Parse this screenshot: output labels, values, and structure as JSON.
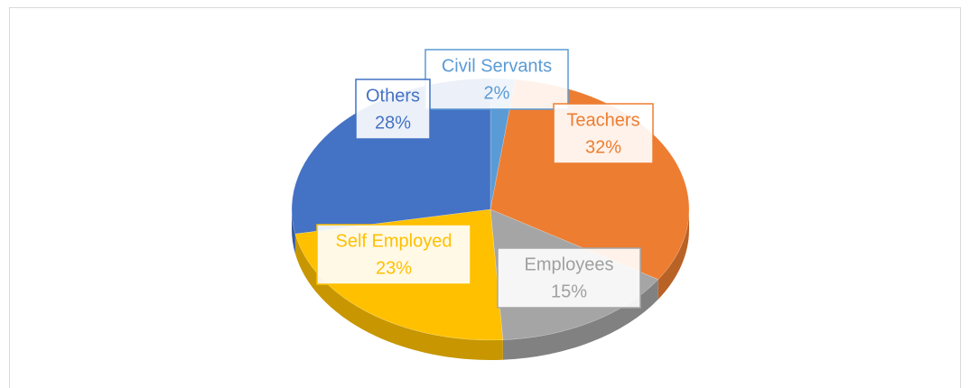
{
  "chart_data": {
    "type": "pie",
    "categories": [
      "Civil Servants",
      "Teachers",
      "Employees",
      "Self Employed",
      "Others"
    ],
    "values": [
      2,
      32,
      15,
      23,
      28
    ],
    "value_labels": [
      "2%",
      "32%",
      "15%",
      "23%",
      "28%"
    ],
    "colors": [
      "#5b9bd5",
      "#ed7d31",
      "#a5a5a5",
      "#ffc000",
      "#4472c4"
    ]
  }
}
